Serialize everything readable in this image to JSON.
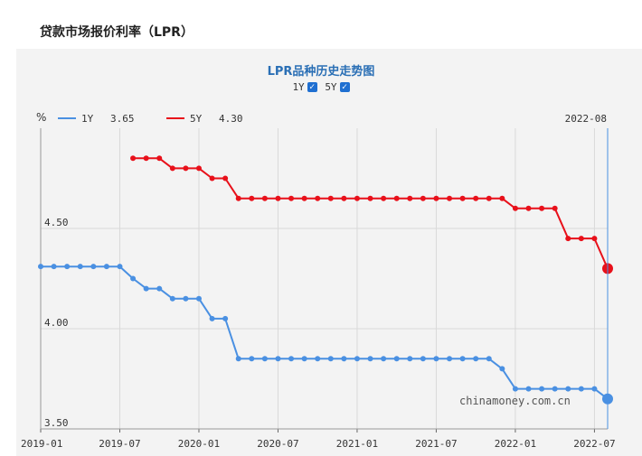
{
  "page": {
    "title": "贷款市场报价利率（LPR）"
  },
  "chart_toggles": [
    {
      "label": "1Y",
      "checked": true
    },
    {
      "label": "5Y",
      "checked": true
    }
  ],
  "chart_data": {
    "type": "line",
    "title": "LPR品种历史走势图",
    "ylabel": "%",
    "ylim": [
      3.5,
      5.0
    ],
    "yticks": [
      3.5,
      4.0,
      4.5
    ],
    "ytick_labels": [
      "3.50",
      "4.00",
      "4.50"
    ],
    "xlim": [
      "2019-01",
      "2022-08"
    ],
    "xtick_labels": [
      "2019-01",
      "2019-07",
      "2020-01",
      "2020-07",
      "2021-01",
      "2021-07",
      "2022-01",
      "2022-07"
    ],
    "crosshair": {
      "x": "2022-08",
      "label": "2022-08"
    },
    "grid": true,
    "legend_position": "top-left",
    "watermark": "chinamoney.com.cn",
    "series": [
      {
        "name": "1Y",
        "latest": "3.65",
        "color": "#4a90e2",
        "x": [
          "2019-01",
          "2019-02",
          "2019-03",
          "2019-04",
          "2019-05",
          "2019-06",
          "2019-07",
          "2019-08",
          "2019-09",
          "2019-10",
          "2019-11",
          "2019-12",
          "2020-01",
          "2020-02",
          "2020-03",
          "2020-04",
          "2020-05",
          "2020-06",
          "2020-07",
          "2020-08",
          "2020-09",
          "2020-10",
          "2020-11",
          "2020-12",
          "2021-01",
          "2021-02",
          "2021-03",
          "2021-04",
          "2021-05",
          "2021-06",
          "2021-07",
          "2021-08",
          "2021-09",
          "2021-10",
          "2021-11",
          "2021-12",
          "2022-01",
          "2022-02",
          "2022-03",
          "2022-04",
          "2022-05",
          "2022-06",
          "2022-07",
          "2022-08"
        ],
        "values": [
          4.31,
          4.31,
          4.31,
          4.31,
          4.31,
          4.31,
          4.31,
          4.25,
          4.2,
          4.2,
          4.15,
          4.15,
          4.15,
          4.05,
          4.05,
          3.85,
          3.85,
          3.85,
          3.85,
          3.85,
          3.85,
          3.85,
          3.85,
          3.85,
          3.85,
          3.85,
          3.85,
          3.85,
          3.85,
          3.85,
          3.85,
          3.85,
          3.85,
          3.85,
          3.85,
          3.8,
          3.7,
          3.7,
          3.7,
          3.7,
          3.7,
          3.7,
          3.7,
          3.65
        ]
      },
      {
        "name": "5Y",
        "latest": "4.30",
        "color": "#e8101a",
        "x": [
          "2019-08",
          "2019-09",
          "2019-10",
          "2019-11",
          "2019-12",
          "2020-01",
          "2020-02",
          "2020-03",
          "2020-04",
          "2020-05",
          "2020-06",
          "2020-07",
          "2020-08",
          "2020-09",
          "2020-10",
          "2020-11",
          "2020-12",
          "2021-01",
          "2021-02",
          "2021-03",
          "2021-04",
          "2021-05",
          "2021-06",
          "2021-07",
          "2021-08",
          "2021-09",
          "2021-10",
          "2021-11",
          "2021-12",
          "2022-01",
          "2022-02",
          "2022-03",
          "2022-04",
          "2022-05",
          "2022-06",
          "2022-07",
          "2022-08"
        ],
        "values": [
          4.85,
          4.85,
          4.85,
          4.8,
          4.8,
          4.8,
          4.75,
          4.75,
          4.65,
          4.65,
          4.65,
          4.65,
          4.65,
          4.65,
          4.65,
          4.65,
          4.65,
          4.65,
          4.65,
          4.65,
          4.65,
          4.65,
          4.65,
          4.65,
          4.65,
          4.65,
          4.65,
          4.65,
          4.65,
          4.6,
          4.6,
          4.6,
          4.6,
          4.45,
          4.45,
          4.45,
          4.3
        ]
      }
    ]
  }
}
